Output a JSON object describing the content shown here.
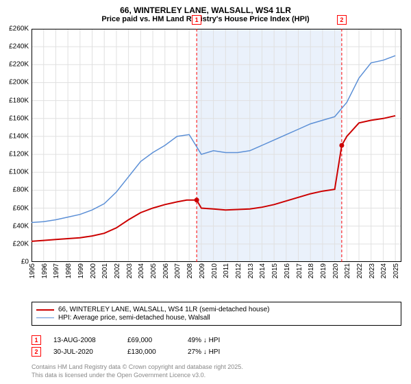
{
  "title_line1": "66, WINTERLEY LANE, WALSALL, WS4 1LR",
  "title_line2": "Price paid vs. HM Land Registry's House Price Index (HPI)",
  "chart": {
    "type": "line",
    "background_color": "#ffffff",
    "grid_color": "#e0e0e0",
    "border_color": "#000000",
    "xlim": [
      1995,
      2025.5
    ],
    "ylim": [
      0,
      260000
    ],
    "ytick_step": 20000,
    "ytick_labels": [
      "£0",
      "£20K",
      "£40K",
      "£60K",
      "£80K",
      "£100K",
      "£120K",
      "£140K",
      "£160K",
      "£180K",
      "£200K",
      "£220K",
      "£240K",
      "£260K"
    ],
    "xticks": [
      1995,
      1996,
      1997,
      1998,
      1999,
      2000,
      2001,
      2002,
      2003,
      2004,
      2005,
      2006,
      2007,
      2008,
      2009,
      2010,
      2011,
      2012,
      2013,
      2014,
      2015,
      2016,
      2017,
      2018,
      2019,
      2020,
      2021,
      2022,
      2023,
      2024,
      2025
    ],
    "shaded_region": {
      "x_start": 2008.62,
      "x_end": 2020.58,
      "fill": "#eaf1fb"
    },
    "markers": [
      {
        "n": "1",
        "x": 2008.62,
        "color": "#ff0000",
        "dash": "4,3"
      },
      {
        "n": "2",
        "x": 2020.58,
        "color": "#ff0000",
        "dash": "4,3"
      }
    ],
    "series": [
      {
        "name": "price_paid",
        "color": "#cc0000",
        "line_width": 2,
        "points": [
          [
            1995,
            23000
          ],
          [
            1996,
            24000
          ],
          [
            1997,
            25000
          ],
          [
            1998,
            26000
          ],
          [
            1999,
            27000
          ],
          [
            2000,
            29000
          ],
          [
            2001,
            32000
          ],
          [
            2002,
            38000
          ],
          [
            2003,
            47000
          ],
          [
            2004,
            55000
          ],
          [
            2005,
            60000
          ],
          [
            2006,
            64000
          ],
          [
            2007,
            67000
          ],
          [
            2007.8,
            69000
          ],
          [
            2008.62,
            69000
          ],
          [
            2009,
            60000
          ],
          [
            2010,
            59000
          ],
          [
            2011,
            58000
          ],
          [
            2012,
            58500
          ],
          [
            2013,
            59000
          ],
          [
            2014,
            61000
          ],
          [
            2015,
            64000
          ],
          [
            2016,
            68000
          ],
          [
            2017,
            72000
          ],
          [
            2018,
            76000
          ],
          [
            2019,
            79000
          ],
          [
            2020,
            81000
          ],
          [
            2020.58,
            130000
          ],
          [
            2021,
            140000
          ],
          [
            2022,
            155000
          ],
          [
            2023,
            158000
          ],
          [
            2024,
            160000
          ],
          [
            2025,
            163000
          ]
        ],
        "sale_dots": [
          {
            "x": 2008.62,
            "y": 69000,
            "fill": "#cc0000"
          },
          {
            "x": 2020.58,
            "y": 130000,
            "fill": "#cc0000"
          }
        ]
      },
      {
        "name": "hpi",
        "color": "#5b8fd6",
        "line_width": 1.5,
        "points": [
          [
            1995,
            44000
          ],
          [
            1996,
            45000
          ],
          [
            1997,
            47000
          ],
          [
            1998,
            50000
          ],
          [
            1999,
            53000
          ],
          [
            2000,
            58000
          ],
          [
            2001,
            65000
          ],
          [
            2002,
            78000
          ],
          [
            2003,
            95000
          ],
          [
            2004,
            112000
          ],
          [
            2005,
            122000
          ],
          [
            2006,
            130000
          ],
          [
            2007,
            140000
          ],
          [
            2008,
            142000
          ],
          [
            2009,
            120000
          ],
          [
            2010,
            124000
          ],
          [
            2011,
            122000
          ],
          [
            2012,
            122000
          ],
          [
            2013,
            124000
          ],
          [
            2014,
            130000
          ],
          [
            2015,
            136000
          ],
          [
            2016,
            142000
          ],
          [
            2017,
            148000
          ],
          [
            2018,
            154000
          ],
          [
            2019,
            158000
          ],
          [
            2020,
            162000
          ],
          [
            2021,
            178000
          ],
          [
            2022,
            205000
          ],
          [
            2023,
            222000
          ],
          [
            2024,
            225000
          ],
          [
            2025,
            230000
          ]
        ]
      }
    ]
  },
  "legend": {
    "row1": {
      "color": "#cc0000",
      "width": 2,
      "label": "66, WINTERLEY LANE, WALSALL, WS4 1LR (semi-detached house)"
    },
    "row2": {
      "color": "#5b8fd6",
      "width": 1.5,
      "label": "HPI: Average price, semi-detached house, Walsall"
    }
  },
  "sales": [
    {
      "n": "1",
      "date": "13-AUG-2008",
      "price": "£69,000",
      "hpi": "49% ↓ HPI",
      "color": "#ff0000"
    },
    {
      "n": "2",
      "date": "30-JUL-2020",
      "price": "£130,000",
      "hpi": "27% ↓ HPI",
      "color": "#ff0000"
    }
  ],
  "footer_line1": "Contains HM Land Registry data © Crown copyright and database right 2025.",
  "footer_line2": "This data is licensed under the Open Government Licence v3.0."
}
